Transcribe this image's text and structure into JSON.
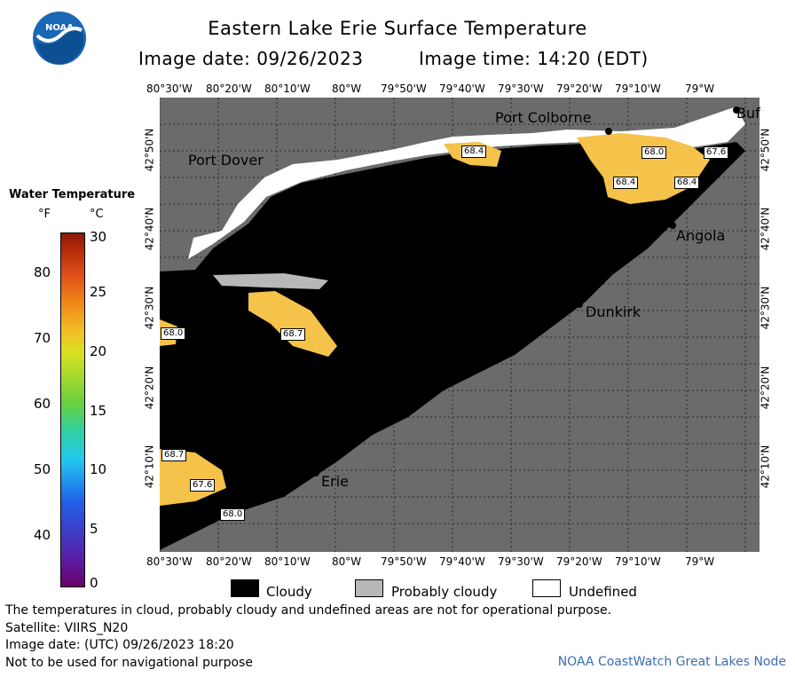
{
  "header": {
    "title": "Eastern Lake Erie Surface Temperature",
    "image_date": "Image date: 09/26/2023",
    "image_time": "Image time: 14:20 (EDT)"
  },
  "logo_text": "NOAA",
  "axes": {
    "lon_labels": [
      "80°30'W",
      "80°20'W",
      "80°10'W",
      "80°W",
      "79°50'W",
      "79°40'W",
      "79°30'W",
      "79°20'W",
      "79°10'W",
      "79°W"
    ],
    "lat_labels": [
      "42°50'N",
      "42°40'N",
      "42°30'N",
      "42°20'N",
      "42°10'N"
    ]
  },
  "legend": {
    "title": "Water Temperature",
    "unit_f": "°F",
    "unit_c": "°C",
    "f_ticks": [
      "80",
      "70",
      "60",
      "50",
      "40"
    ],
    "c_ticks": [
      "30",
      "25",
      "20",
      "15",
      "10",
      "5",
      "0"
    ]
  },
  "places": [
    "Port Colborne",
    "Buf",
    "Port Dover",
    "Angola",
    "Dunkirk",
    "Erie"
  ],
  "temps": [
    "68.4",
    "68.0",
    "67.6",
    "68.4",
    "68.4",
    "68.0",
    "68.7",
    "68.7",
    "67.6",
    "68.0"
  ],
  "mask_legend": [
    "Cloudy",
    "Probably cloudy",
    "Undefined"
  ],
  "footer": {
    "line1": "The temperatures in cloud, probably cloudy and undefined areas are not for operational purpose.",
    "line2": "Satellite: VIIRS_N20",
    "line3": "Image date: (UTC) 09/26/2023   18:20",
    "line4": "Not to be used for navigational purpose",
    "credit": "NOAA CoastWatch Great Lakes Node"
  },
  "colors": {
    "land": "#6b6b6b",
    "cloud": "#000000",
    "probably_cloudy": "#b8b8b8",
    "undefined": "#ffffff",
    "water_warm": "#f5c24a"
  }
}
